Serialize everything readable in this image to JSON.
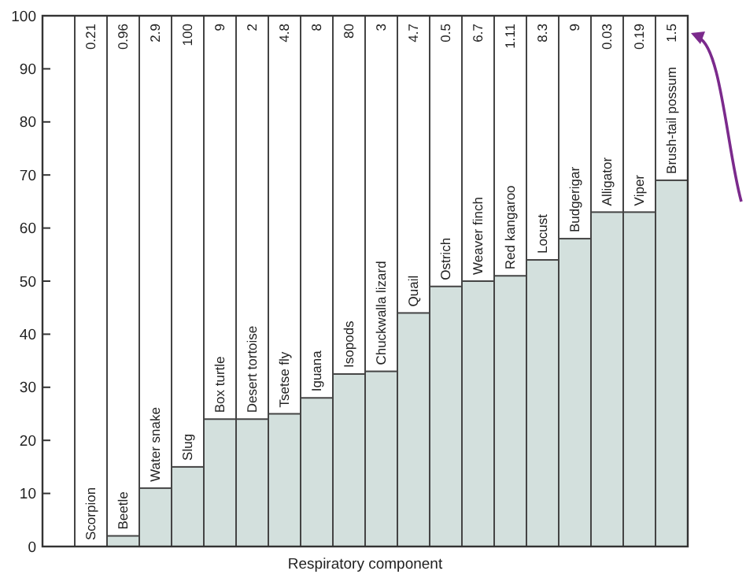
{
  "chart_data": {
    "type": "bar",
    "xlabel": "Respiratory component",
    "categories": [
      "Scorpion",
      "Beetle",
      "Water snake",
      "Slug",
      "Box turtle",
      "Desert tortoise",
      "Tsetse fly",
      "Iguana",
      "Isopods",
      "Chuckwalla lizard",
      "Quail",
      "Ostrich",
      "Weaver finch",
      "Red kangaroo",
      "Locust",
      "Budgerigar",
      "Alligator",
      "Viper",
      "Brush-tail possum"
    ],
    "values": [
      0,
      2,
      11,
      15,
      24,
      24,
      25,
      28,
      32.5,
      33,
      44,
      49,
      50,
      51,
      54,
      58,
      63,
      63,
      69
    ],
    "color": "#d3e0dd",
    "ylim": [
      0,
      100
    ],
    "yticks": [
      0,
      10,
      20,
      30,
      40,
      50,
      60,
      70,
      80,
      90,
      100
    ],
    "grid": false,
    "annotations": [
      "0.21",
      "0.96",
      "2.9",
      "100",
      "9",
      "2",
      "4.8",
      "8",
      "80",
      "3",
      "4.7",
      "0.5",
      "6.7",
      "1.11",
      "8.3",
      "9",
      "0.03",
      "0.19",
      "1.5"
    ]
  }
}
